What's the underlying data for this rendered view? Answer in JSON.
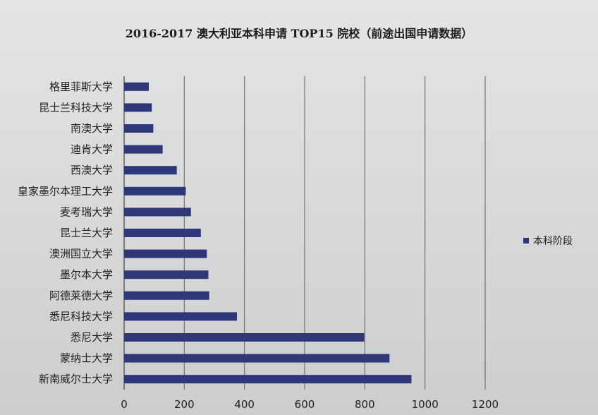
{
  "chart_data": {
    "type": "bar",
    "orientation": "horizontal",
    "title": "2016-2017 澳大利亚本科申请 TOP15 院校（前途出国申请数据）",
    "categories": [
      "新南威尔士大学",
      "蒙纳士大学",
      "悉尼大学",
      "悉尼科技大学",
      "阿德莱德大学",
      "墨尔本大学",
      "澳洲国立大学",
      "昆士兰大学",
      "麦考瑞大学",
      "皇家墨尔本理工大学",
      "西澳大学",
      "迪肯大学",
      "南澳大学",
      "昆士兰科技大学",
      "格里菲斯大学"
    ],
    "series": [
      {
        "name": "本科阶段",
        "color": "#2e3778",
        "values": [
          955,
          882,
          798,
          375,
          283,
          280,
          275,
          255,
          222,
          205,
          175,
          128,
          97,
          92,
          82
        ]
      }
    ],
    "xlim": [
      0,
      1200
    ],
    "xticks": [
      "0",
      "200",
      "400",
      "600",
      "800",
      "1000",
      "1200"
    ],
    "grid": "vertical",
    "legend_position": "right"
  }
}
